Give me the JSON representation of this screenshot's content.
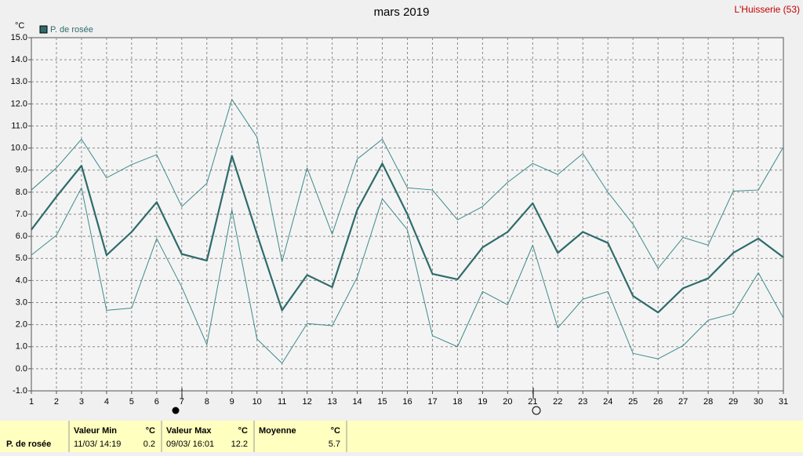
{
  "chart_data": {
    "type": "line",
    "title": "mars 2019",
    "station": "L'Huisserie (53)",
    "y_unit": "°C",
    "x": [
      1,
      2,
      3,
      4,
      5,
      6,
      7,
      8,
      9,
      10,
      11,
      12,
      13,
      14,
      15,
      16,
      17,
      18,
      19,
      20,
      21,
      22,
      23,
      24,
      25,
      26,
      27,
      28,
      29,
      30,
      31
    ],
    "xlim": [
      1,
      31
    ],
    "xticks": [
      1,
      2,
      3,
      4,
      5,
      6,
      7,
      8,
      9,
      10,
      11,
      12,
      13,
      14,
      15,
      16,
      17,
      18,
      19,
      20,
      21,
      22,
      23,
      24,
      25,
      26,
      27,
      28,
      29,
      30,
      31
    ],
    "ylim": [
      -1,
      15
    ],
    "yticks": [
      {
        "value": -1,
        "label": "-1.0"
      },
      {
        "value": 0,
        "label": "0.0"
      },
      {
        "value": 1,
        "label": "1.0"
      },
      {
        "value": 2,
        "label": "2.0"
      },
      {
        "value": 3,
        "label": "3.0"
      },
      {
        "value": 4,
        "label": "4.0"
      },
      {
        "value": 5,
        "label": "5.0"
      },
      {
        "value": 6,
        "label": "6.0"
      },
      {
        "value": 7,
        "label": "7.0"
      },
      {
        "value": 8,
        "label": "8.0"
      },
      {
        "value": 9,
        "label": "9.0"
      },
      {
        "value": 10,
        "label": "10.0"
      },
      {
        "value": 11,
        "label": "11.0"
      },
      {
        "value": 12,
        "label": "12.0"
      },
      {
        "value": 13,
        "label": "13.0"
      },
      {
        "value": 14,
        "label": "14.0"
      },
      {
        "value": 15,
        "label": "15.0"
      }
    ],
    "grid": true,
    "series": [
      {
        "name": "P. de rosée",
        "color": "#2f6b6b",
        "width": 2.2,
        "values": [
          6.3,
          7.8,
          9.2,
          5.15,
          6.2,
          7.55,
          5.2,
          4.9,
          9.65,
          6.1,
          2.65,
          4.25,
          3.7,
          7.2,
          9.3,
          7.0,
          4.3,
          4.05,
          5.5,
          6.2,
          7.5,
          5.25,
          6.2,
          5.7,
          3.3,
          2.55,
          3.65,
          4.1,
          5.25,
          5.9,
          5.05
        ]
      },
      {
        "color": "#3f8a8a",
        "width": 1,
        "values": [
          8.1,
          9.1,
          10.4,
          8.65,
          9.25,
          9.7,
          7.35,
          8.4,
          12.2,
          10.5,
          4.85,
          9.1,
          6.1,
          9.5,
          10.4,
          8.2,
          8.1,
          6.75,
          7.35,
          8.45,
          9.3,
          8.8,
          9.75,
          8.0,
          6.55,
          4.55,
          5.95,
          5.6,
          8.05,
          8.1,
          10.05
        ]
      },
      {
        "color": "#3f8a8a",
        "width": 1,
        "values": [
          5.15,
          6.05,
          8.2,
          2.65,
          2.75,
          5.9,
          3.7,
          1.1,
          7.2,
          1.35,
          0.25,
          2.05,
          1.95,
          4.15,
          7.7,
          6.3,
          1.5,
          1.0,
          3.5,
          2.9,
          5.6,
          1.85,
          3.15,
          3.5,
          0.7,
          0.45,
          1.05,
          2.2,
          2.5,
          4.35,
          2.3
        ]
      }
    ]
  },
  "summary": {
    "row_label": "P. de rosée",
    "columns": [
      {
        "header": "Valeur Min",
        "unit": "°C",
        "date": "11/03/ 14:19",
        "value": 0.2
      },
      {
        "header": "Valeur Max",
        "unit": "°C",
        "date": "09/03/ 16:01",
        "value": 12.2
      },
      {
        "header": "Moyenne",
        "unit": "°C",
        "value": 5.7
      }
    ]
  }
}
